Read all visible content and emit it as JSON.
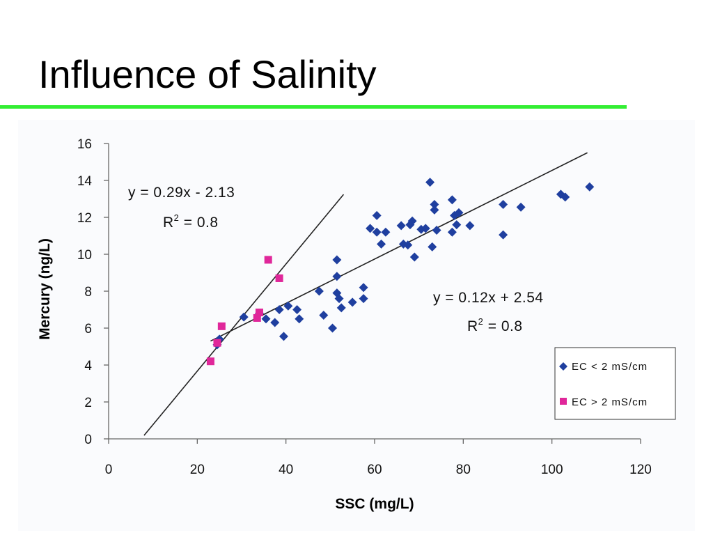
{
  "slide": {
    "title": "Influence of Salinity",
    "rule_color": "#33ee33"
  },
  "chart_data": {
    "type": "scatter",
    "title": "",
    "xlabel": "SSC (mg/L)",
    "ylabel": "Mercury (ng/L)",
    "xlim": [
      0,
      120
    ],
    "ylim": [
      0,
      16
    ],
    "x_ticks": [
      0,
      20,
      40,
      60,
      80,
      100,
      120
    ],
    "y_ticks": [
      0,
      2,
      4,
      6,
      8,
      10,
      12,
      14,
      16
    ],
    "grid": false,
    "legend_position": "bottom-right",
    "series": [
      {
        "name": "EC < 2 mS/cm",
        "marker": "diamond",
        "color": "#1f3f9f",
        "points": [
          [
            24.5,
            5.1
          ],
          [
            25,
            5.4
          ],
          [
            30.5,
            6.6
          ],
          [
            34,
            6.8
          ],
          [
            35.5,
            6.5
          ],
          [
            37.5,
            6.3
          ],
          [
            38.5,
            7.0
          ],
          [
            39.5,
            5.55
          ],
          [
            40.5,
            7.2
          ],
          [
            42.5,
            7.0
          ],
          [
            43,
            6.5
          ],
          [
            47.5,
            8.0
          ],
          [
            48.5,
            6.7
          ],
          [
            50.5,
            6.0
          ],
          [
            51.5,
            8.8
          ],
          [
            51.5,
            7.9
          ],
          [
            51.5,
            9.7
          ],
          [
            52,
            7.6
          ],
          [
            52.5,
            7.1
          ],
          [
            55,
            7.4
          ],
          [
            57.5,
            8.2
          ],
          [
            57.5,
            7.6
          ],
          [
            59,
            11.4
          ],
          [
            60.5,
            12.1
          ],
          [
            60.5,
            11.2
          ],
          [
            61.5,
            10.55
          ],
          [
            62.5,
            11.2
          ],
          [
            66,
            11.55
          ],
          [
            66.5,
            10.55
          ],
          [
            67.5,
            10.5
          ],
          [
            68,
            11.6
          ],
          [
            68.5,
            11.8
          ],
          [
            69,
            9.85
          ],
          [
            70.5,
            11.35
          ],
          [
            71.5,
            11.4
          ],
          [
            72.5,
            13.9
          ],
          [
            73,
            10.4
          ],
          [
            73.5,
            12.7
          ],
          [
            73.5,
            12.4
          ],
          [
            74,
            11.3
          ],
          [
            77.5,
            12.95
          ],
          [
            77.5,
            11.2
          ],
          [
            78,
            12.1
          ],
          [
            78.5,
            11.6
          ],
          [
            79,
            12.25
          ],
          [
            81.5,
            11.55
          ],
          [
            89,
            12.7
          ],
          [
            89,
            11.05
          ],
          [
            93,
            12.55
          ],
          [
            102,
            13.25
          ],
          [
            103,
            13.1
          ],
          [
            108.5,
            13.65
          ]
        ]
      },
      {
        "name": "EC > 2 mS/cm",
        "marker": "square",
        "color": "#e0279a",
        "points": [
          [
            23,
            4.2
          ],
          [
            24.5,
            5.2
          ],
          [
            25.5,
            6.1
          ],
          [
            33.5,
            6.55
          ],
          [
            34,
            6.85
          ],
          [
            36,
            9.7
          ],
          [
            38.5,
            8.7
          ]
        ]
      }
    ],
    "trendlines": [
      {
        "series": "EC > 2 mS/cm",
        "equation": "y = 0.29x - 2.13",
        "r2_prefix": "R",
        "r2_sup": "2",
        "r2_suffix": " = 0.8",
        "slope": 0.29,
        "intercept": -2.13,
        "x_range": [
          8,
          53
        ]
      },
      {
        "series": "EC < 2 mS/cm",
        "equation": "y = 0.12x + 2.54",
        "r2_prefix": "R",
        "r2_sup": "2",
        "r2_suffix": " = 0.8",
        "slope": 0.12,
        "intercept": 2.54,
        "x_range": [
          23,
          108
        ]
      }
    ]
  }
}
